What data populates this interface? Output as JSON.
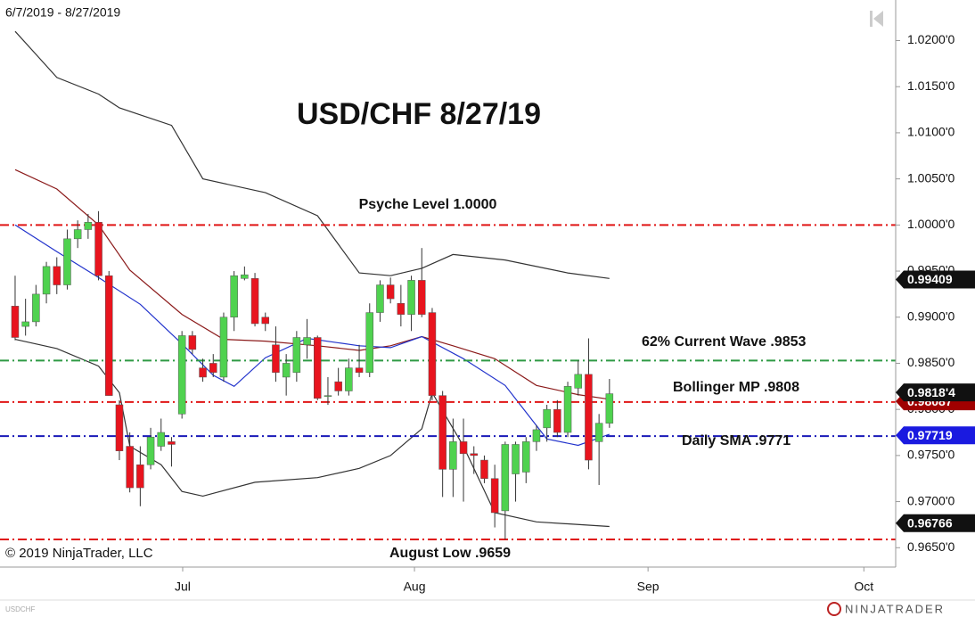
{
  "date_range": "6/7/2019 - 8/27/2019",
  "copyright": "© 2019 NinjaTrader, LLC",
  "symbol": "USDCHF",
  "brand": "NINJATRADER",
  "chart_data": {
    "type": "candlestick",
    "title": "USD/CHF 8/27/19",
    "x": [
      0,
      1,
      2,
      3,
      4,
      5,
      6,
      7,
      8,
      9,
      10,
      11,
      12,
      13,
      14,
      15,
      16,
      17,
      18,
      19,
      20,
      21,
      22,
      23,
      24,
      25,
      26,
      27,
      28,
      29,
      30,
      31,
      32,
      33,
      34,
      35,
      36,
      37,
      38,
      39,
      40,
      41,
      42,
      43,
      44,
      45,
      46,
      47,
      48,
      49,
      50,
      51,
      52,
      53,
      54,
      55,
      56,
      57
    ],
    "open": [
      0.9912,
      0.989,
      0.9895,
      0.9925,
      0.9955,
      0.9935,
      0.9985,
      0.9995,
      1.0003,
      0.9945,
      0.9805,
      0.976,
      0.974,
      0.974,
      0.976,
      0.9765,
      0.9795,
      0.988,
      0.9845,
      0.985,
      0.9835,
      0.99,
      0.9942,
      0.9942,
      0.99,
      0.987,
      0.9835,
      0.984,
      0.987,
      0.9878,
      0.9815,
      0.983,
      0.982,
      0.9845,
      0.984,
      0.9905,
      0.9935,
      0.9915,
      0.9903,
      0.994,
      0.9905,
      0.9815,
      0.9735,
      0.9765,
      0.9752,
      0.9745,
      0.9725,
      0.969,
      0.973,
      0.9732,
      0.9765,
      0.978,
      0.98,
      0.9775,
      0.9823,
      0.9838,
      0.9765,
      0.9785
    ],
    "high": [
      0.9945,
      0.992,
      0.9935,
      0.996,
      0.9965,
      0.9995,
      1.0005,
      1.0012,
      1.0015,
      0.995,
      0.981,
      0.9775,
      0.976,
      0.978,
      0.979,
      0.977,
      0.9885,
      0.9885,
      0.9855,
      0.986,
      0.9905,
      0.995,
      0.9955,
      0.9948,
      0.9905,
      0.989,
      0.986,
      0.9885,
      0.9898,
      0.988,
      0.9835,
      0.9845,
      0.9855,
      0.987,
      0.9915,
      0.994,
      0.9943,
      0.9935,
      0.9945,
      0.9975,
      0.991,
      0.982,
      0.979,
      0.979,
      0.976,
      0.975,
      0.974,
      0.9765,
      0.9765,
      0.977,
      0.9783,
      0.9805,
      0.981,
      0.983,
      0.9853,
      0.9877,
      0.9795,
      0.9833
    ],
    "low": [
      0.9875,
      0.988,
      0.989,
      0.9915,
      0.9925,
      0.993,
      0.9975,
      0.9985,
      0.994,
      0.9815,
      0.9745,
      0.971,
      0.9695,
      0.9735,
      0.9755,
      0.9738,
      0.979,
      0.986,
      0.983,
      0.9835,
      0.983,
      0.9885,
      0.994,
      0.989,
      0.9885,
      0.983,
      0.9815,
      0.983,
      0.9855,
      0.981,
      0.9805,
      0.9815,
      0.9815,
      0.9835,
      0.9835,
      0.9895,
      0.9915,
      0.989,
      0.9885,
      0.99,
      0.981,
      0.9705,
      0.9705,
      0.97,
      0.973,
      0.972,
      0.9672,
      0.9659,
      0.97,
      0.972,
      0.9755,
      0.9765,
      0.977,
      0.977,
      0.9815,
      0.9735,
      0.9718,
      0.978
    ],
    "close": [
      0.9878,
      0.9895,
      0.9925,
      0.9955,
      0.9935,
      0.9985,
      0.9995,
      1.0003,
      0.9945,
      0.9815,
      0.9755,
      0.9715,
      0.9715,
      0.977,
      0.9775,
      0.9762,
      0.988,
      0.9865,
      0.9835,
      0.984,
      0.99,
      0.9945,
      0.9946,
      0.9893,
      0.9893,
      0.984,
      0.985,
      0.9878,
      0.9878,
      0.9812,
      0.9815,
      0.982,
      0.9845,
      0.984,
      0.9905,
      0.9935,
      0.992,
      0.9903,
      0.994,
      0.9903,
      0.9815,
      0.9735,
      0.9765,
      0.9752,
      0.975,
      0.9725,
      0.9688,
      0.9762,
      0.9762,
      0.9765,
      0.9778,
      0.98,
      0.9775,
      0.9825,
      0.9838,
      0.9745,
      0.9785,
      0.9817
    ],
    "up_color": "#4fd24f",
    "down_color": "#e8141e",
    "wick_color": "#333333",
    "overlays": [
      {
        "color": "#333333",
        "x": [
          0,
          2,
          4,
          8,
          10,
          15,
          18,
          24,
          29,
          33,
          36,
          39,
          42,
          47,
          53,
          57
        ],
        "values": [
          1.021,
          1.0185,
          1.016,
          1.0142,
          1.0127,
          1.0108,
          1.005,
          1.0035,
          1.001,
          0.9948,
          0.9945,
          0.9953,
          0.9968,
          0.9962,
          0.9948,
          0.9942
        ]
      },
      {
        "color": "#333333",
        "x": [
          0,
          4,
          8,
          10,
          11,
          14,
          16,
          18,
          23,
          29,
          33,
          36,
          39,
          40,
          43,
          46,
          50,
          57
        ],
        "values": [
          0.9876,
          0.9866,
          0.9847,
          0.9818,
          0.976,
          0.974,
          0.9711,
          0.9706,
          0.9721,
          0.9726,
          0.9736,
          0.975,
          0.9779,
          0.9818,
          0.976,
          0.9688,
          0.9678,
          0.9673
        ]
      },
      {
        "color": "#8b1a1a",
        "x": [
          0,
          4,
          8,
          11,
          16,
          20,
          24,
          29,
          33,
          36,
          39,
          42,
          46,
          50,
          54,
          57
        ],
        "values": [
          1.006,
          1.0039,
          1.0,
          0.9951,
          0.9903,
          0.9876,
          0.9874,
          0.9869,
          0.9864,
          0.9869,
          0.9879,
          0.9869,
          0.9855,
          0.9826,
          0.9816,
          0.9811
        ]
      },
      {
        "color": "#2233cc",
        "x": [
          0,
          4,
          8,
          12,
          16,
          19,
          21,
          24,
          28,
          33,
          36,
          39,
          43,
          47,
          51,
          54,
          57
        ],
        "values": [
          1.0,
          0.9971,
          0.9943,
          0.9914,
          0.9871,
          0.9837,
          0.9825,
          0.9856,
          0.9877,
          0.9869,
          0.9867,
          0.9879,
          0.9855,
          0.9826,
          0.9768,
          0.9761,
          0.9773
        ]
      }
    ],
    "levels": [
      {
        "value": 1.0,
        "label": "Psyche Level 1.0000",
        "color": "#e01515",
        "style": "dashdot"
      },
      {
        "value": 0.9853,
        "label": "62% Current Wave .9853",
        "color": "#2e9a44",
        "style": "dashdot"
      },
      {
        "value": 0.9808,
        "label": "Bollinger MP .9808",
        "color": "#e01515",
        "style": "dashdot"
      },
      {
        "value": 0.9771,
        "label": "Daily SMA .9771",
        "color": "#1a1ab8",
        "style": "dashdot"
      },
      {
        "value": 0.9659,
        "label": "August Low .9659",
        "color": "#e01515",
        "style": "dashdot"
      }
    ],
    "markers": [
      {
        "value": 0.99409,
        "label": "0.99409",
        "color": "#111111"
      },
      {
        "value": 0.98087,
        "label": "0.98087",
        "color": "#a00000"
      },
      {
        "value": 0.98184,
        "label": "0.9818'4",
        "color": "#111111"
      },
      {
        "value": 0.97719,
        "label": "0.97719",
        "color": "#1a1ae0"
      },
      {
        "value": 0.96766,
        "label": "0.96766",
        "color": "#111111"
      }
    ],
    "xlim": [
      -1.45,
      84.45
    ],
    "ylim": [
      0.9629,
      1.0244
    ],
    "xticks": [
      {
        "value": 16.07,
        "label": "Jul"
      },
      {
        "value": 38.3,
        "label": "Aug"
      },
      {
        "value": 60.7,
        "label": "Sep"
      },
      {
        "value": 81.4,
        "label": "Oct"
      }
    ],
    "yticks": [
      {
        "value": 1.02,
        "label": "1.0200'0"
      },
      {
        "value": 1.015,
        "label": "1.0150'0"
      },
      {
        "value": 1.01,
        "label": "1.0100'0"
      },
      {
        "value": 1.005,
        "label": "1.0050'0"
      },
      {
        "value": 1.0,
        "label": "1.0000'0"
      },
      {
        "value": 0.995,
        "label": "0.9950'0"
      },
      {
        "value": 0.99,
        "label": "0.9900'0"
      },
      {
        "value": 0.985,
        "label": "0.9850'0"
      },
      {
        "value": 0.98,
        "label": "0.9800'0"
      },
      {
        "value": 0.975,
        "label": "0.9750'0"
      },
      {
        "value": 0.97,
        "label": "0.9700'0"
      },
      {
        "value": 0.965,
        "label": "0.9650'0"
      }
    ]
  }
}
